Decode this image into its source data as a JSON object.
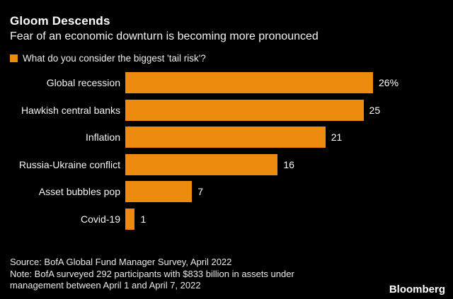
{
  "header": {
    "title": "Gloom Descends",
    "subtitle": "Fear of an economic downturn is becoming more pronounced"
  },
  "legend": {
    "label": "What do you consider the biggest 'tail risk'?",
    "swatch_color": "#EC8B0E"
  },
  "chart_data": {
    "type": "bar",
    "orientation": "horizontal",
    "title": "What do you consider the biggest 'tail risk'?",
    "categories": [
      "Global recession",
      "Hawkish central banks",
      "Inflation",
      "Russia-Ukraine conflict",
      "Asset bubbles pop",
      "Covid-19"
    ],
    "values": [
      26,
      25,
      21,
      16,
      7,
      1
    ],
    "value_labels": [
      "26%",
      "25",
      "21",
      "16",
      "7",
      "1"
    ],
    "unit": "%",
    "xlim": [
      0,
      26
    ],
    "bar_color": "#EC8B0E",
    "background": "#000000",
    "grid": "off",
    "legend_position": "top-left"
  },
  "footer": {
    "lines": [
      "Source: BofA Global Fund Manager Survey, April 2022",
      "Note: BofA surveyed 292 participants with $833 billion in assets under",
      "management between April 1 and April 7, 2022"
    ],
    "brand": "Bloomberg"
  }
}
